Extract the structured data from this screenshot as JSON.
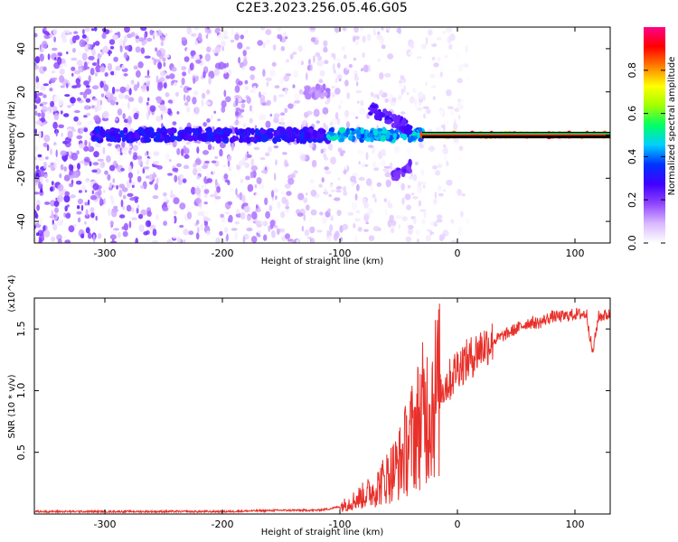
{
  "title": "C2E3.2023.256.05.46.G05",
  "chart_data": [
    {
      "type": "heatmap",
      "xlabel": "Height of straight line (km)",
      "ylabel": "Frequency (Hz)",
      "xlim": [
        -360,
        130
      ],
      "ylim": [
        -50,
        50
      ],
      "xticks": [
        -300,
        -200,
        -100,
        0,
        100
      ],
      "yticks": [
        -40,
        -20,
        0,
        20,
        40
      ],
      "colorbar": {
        "label": "Normalized spectral amplitude",
        "range": [
          0,
          1
        ],
        "ticks": [
          "0.0",
          "0.2",
          "0.4",
          "0.6",
          "0.8"
        ],
        "colors": [
          "#ffffff",
          "#d9b8ff",
          "#8f45ff",
          "#4000ff",
          "#0033ff",
          "#00d0ff",
          "#00ff66",
          "#a0ff00",
          "#ffff00",
          "#ff8000",
          "#ff0000",
          "#ff0088"
        ]
      },
      "features": [
        {
          "x": [
            -310,
            -110
          ],
          "y": 0,
          "amplitude": 0.35
        },
        {
          "x": [
            -110,
            -30
          ],
          "y": 0,
          "amplitude": 0.5
        },
        {
          "x": [
            -30,
            130
          ],
          "y": 0,
          "amplitude": 1.0
        },
        {
          "x": [
            -130,
            -110
          ],
          "y": 20,
          "amplitude": 0.15
        },
        {
          "x": [
            -75,
            -40
          ],
          "y": 12,
          "amplitude": 0.3
        },
        {
          "x": [
            -55,
            -40
          ],
          "y": -20,
          "amplitude": 0.25
        }
      ]
    },
    {
      "type": "line",
      "xlabel": "Height of straight line (km)",
      "ylabel": "SNR (10 * v/v)",
      "y_scale_label": "(x10^4)",
      "xlim": [
        -360,
        130
      ],
      "ylim": [
        0,
        1.75
      ],
      "xticks": [
        -300,
        -200,
        -100,
        0,
        100
      ],
      "yticks": [
        "0.5",
        "1.0",
        "1.5"
      ],
      "series": [
        {
          "color": "#e8302a",
          "x": [
            -360,
            -300,
            -250,
            -200,
            -150,
            -120,
            -110,
            -100,
            -90,
            -80,
            -70,
            -60,
            -50,
            -45,
            -40,
            -35,
            -30,
            -25,
            -20,
            -15,
            -10,
            -5,
            0,
            10,
            20,
            30,
            40,
            50,
            60,
            70,
            80,
            90,
            100,
            110,
            115,
            120,
            130
          ],
          "y": [
            0.02,
            0.02,
            0.02,
            0.02,
            0.03,
            0.03,
            0.04,
            0.06,
            0.1,
            0.15,
            0.2,
            0.3,
            0.4,
            0.5,
            0.6,
            0.7,
            0.8,
            0.85,
            0.95,
            1.0,
            1.05,
            1.1,
            1.2,
            1.25,
            1.35,
            1.4,
            1.45,
            1.5,
            1.55,
            1.55,
            1.6,
            1.6,
            1.62,
            1.62,
            1.3,
            1.6,
            1.62
          ]
        }
      ]
    }
  ]
}
